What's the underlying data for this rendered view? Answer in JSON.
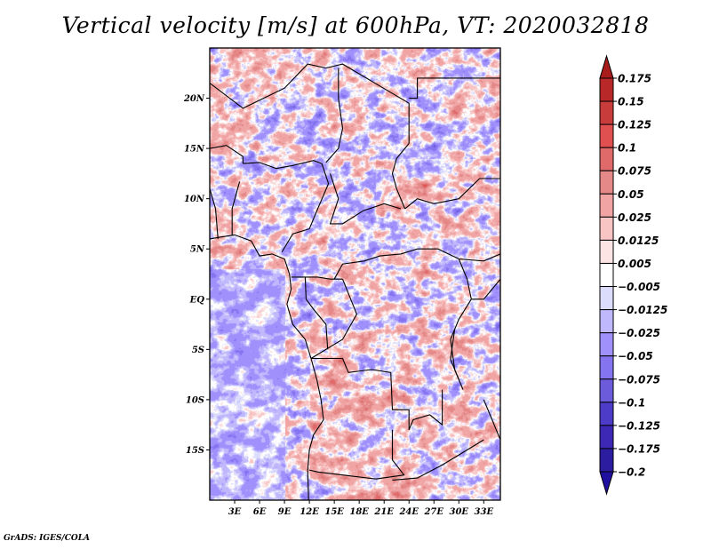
{
  "footer": "GrADS: IGES/COLA",
  "chart_data": {
    "type": "heatmap",
    "title": "Vertical velocity [m/s] at 600hPa, VT: 2020032818",
    "variable": "Vertical velocity",
    "units": "m/s",
    "level": "600hPa",
    "valid_time": "2020032818",
    "xlabel": "",
    "ylabel": "",
    "x_range": [
      0,
      35
    ],
    "y_range": [
      -20,
      25
    ],
    "x_ticks": [
      {
        "value": 3,
        "label": "3E"
      },
      {
        "value": 6,
        "label": "6E"
      },
      {
        "value": 9,
        "label": "9E"
      },
      {
        "value": 12,
        "label": "12E"
      },
      {
        "value": 15,
        "label": "15E"
      },
      {
        "value": 18,
        "label": "18E"
      },
      {
        "value": 21,
        "label": "21E"
      },
      {
        "value": 24,
        "label": "24E"
      },
      {
        "value": 27,
        "label": "27E"
      },
      {
        "value": 30,
        "label": "30E"
      },
      {
        "value": 33,
        "label": "33E"
      }
    ],
    "y_ticks": [
      {
        "value": 20,
        "label": "20N"
      },
      {
        "value": 15,
        "label": "15N"
      },
      {
        "value": 10,
        "label": "10N"
      },
      {
        "value": 5,
        "label": "5N"
      },
      {
        "value": 0,
        "label": "EQ"
      },
      {
        "value": -5,
        "label": "5S"
      },
      {
        "value": -10,
        "label": "10S"
      },
      {
        "value": -15,
        "label": "15S"
      }
    ],
    "colorbar": {
      "labels": [
        "0.175",
        "0.15",
        "0.125",
        "0.1",
        "0.075",
        "0.05",
        "0.025",
        "0.0125",
        "0.005",
        "−0.005",
        "−0.0125",
        "−0.025",
        "−0.05",
        "−0.075",
        "−0.1",
        "−0.125",
        "−0.175",
        "−0.2"
      ],
      "colors": [
        "#a81c1c",
        "#b82828",
        "#c83c3c",
        "#e05050",
        "#e06a6a",
        "#e48888",
        "#f0a4a4",
        "#f8c4c4",
        "#fce4e4",
        "#ffffff",
        "#dcdcfc",
        "#c0b8fc",
        "#a090fc",
        "#8474f0",
        "#6c5cdc",
        "#4c3cc8",
        "#3c28b4",
        "#2c1ca0",
        "#2010a0"
      ],
      "extend": "both"
    },
    "notes": "Filled-contour field over West/Central Africa with country boundaries; mixed positive (red) and negative (blue) vertical velocity with strongest ascent over Chad/Sudan near 12N and Angola highlands."
  }
}
